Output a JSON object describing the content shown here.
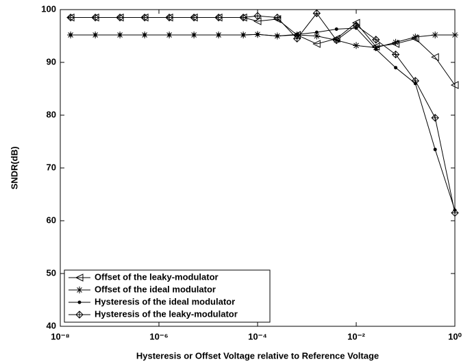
{
  "chart_data": {
    "type": "line",
    "x_label": "Hysteresis or Offset Voltage relative to Reference Voltage",
    "y_label": "SNDR(dB)",
    "x": [
      1.62e-08,
      5.13e-08,
      1.62e-07,
      5.13e-07,
      1.62e-06,
      5.13e-06,
      1.62e-05,
      5.13e-05,
      0.0001,
      0.000251,
      0.000631,
      0.00158,
      0.00398,
      0.01,
      0.0251,
      0.0631,
      0.158,
      0.398,
      1
    ],
    "series": [
      {
        "name": "Offset of the leaky-modulator",
        "color": "#000000",
        "marker": "triangle-left",
        "values": [
          98.5,
          98.5,
          98.5,
          98.5,
          98.5,
          98.5,
          98.5,
          98.5,
          97.8,
          98.2,
          95.2,
          93.5,
          94.5,
          97.5,
          93,
          93.5,
          94.5,
          91,
          85.7
        ]
      },
      {
        "name": "Offset of the ideal modulator",
        "color": "#000000",
        "marker": "asterisk",
        "values": [
          95.2,
          95.2,
          95.2,
          95.2,
          95.2,
          95.2,
          95.2,
          95.2,
          95.3,
          95,
          95.2,
          95,
          94.2,
          93.2,
          92.8,
          93.8,
          94.8,
          95.2,
          95.2
        ]
      },
      {
        "name": "Hysteresis of the ideal modulator",
        "color": "#000000",
        "marker": "dot",
        "values": [
          95.2,
          95.2,
          95.2,
          95.2,
          95.2,
          95.2,
          95.2,
          95.2,
          95.3,
          95,
          95.3,
          95.7,
          96.3,
          96.5,
          92.5,
          89,
          86,
          73.5,
          62
        ]
      },
      {
        "name": "Hysteresis of the leaky-modulator",
        "color": "#000000",
        "marker": "diamond-star",
        "values": [
          98.5,
          98.5,
          98.5,
          98.5,
          98.5,
          98.5,
          98.5,
          98.5,
          98.8,
          98.5,
          94.5,
          99.3,
          94.2,
          97,
          94.3,
          91.5,
          86.5,
          79.5,
          61.5
        ]
      }
    ],
    "xlog": true,
    "xlim": [
      1e-08,
      1
    ],
    "xticks": [
      {
        "value": 1e-08,
        "label": "10⁻⁸"
      },
      {
        "value": 1e-06,
        "label": "10⁻⁶"
      },
      {
        "value": 0.0001,
        "label": "10⁻⁴"
      },
      {
        "value": 0.01,
        "label": "10⁻²"
      },
      {
        "value": 1,
        "label": "10⁰"
      }
    ],
    "ylim": [
      40,
      100
    ],
    "yticks": [
      40,
      50,
      60,
      70,
      80,
      90,
      100
    ],
    "grid": false,
    "legend_position": "lower left"
  }
}
